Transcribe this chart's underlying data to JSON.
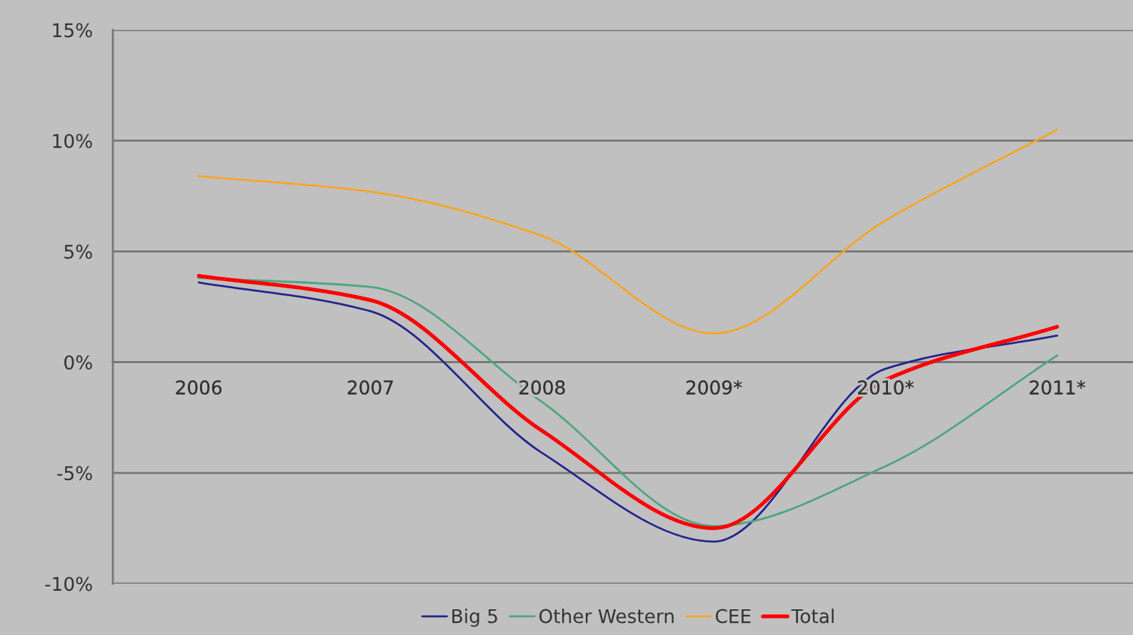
{
  "chart_data": {
    "type": "line",
    "categories": [
      "2006",
      "2007",
      "2008",
      "2009*",
      "2010*",
      "2011*"
    ],
    "series": [
      {
        "name": "Big 5",
        "color": "#24248c",
        "values": [
          3.6,
          2.3,
          -4.1,
          -8.1,
          -0.3,
          1.2
        ]
      },
      {
        "name": "Other Western",
        "color": "#4ea67e",
        "values": [
          3.8,
          3.4,
          -1.8,
          -7.4,
          -4.7,
          0.3
        ]
      },
      {
        "name": "CEE",
        "color": "#f7a626",
        "values": [
          8.4,
          7.7,
          5.7,
          1.3,
          6.4,
          10.5
        ]
      },
      {
        "name": "Total",
        "color": "#ff0000",
        "values": [
          3.9,
          2.8,
          -3.1,
          -7.5,
          -0.8,
          1.6
        ]
      }
    ],
    "ylim": [
      -10,
      15
    ],
    "yticks": [
      {
        "value": -10,
        "label": "-10%"
      },
      {
        "value": -5,
        "label": "-5%"
      },
      {
        "value": 0,
        "label": "0%"
      },
      {
        "value": 5,
        "label": "5%"
      },
      {
        "value": 10,
        "label": "10%"
      },
      {
        "value": 15,
        "label": "15%"
      }
    ],
    "grid": "y",
    "legend": "bottom",
    "marker": "none",
    "line_style": "solid"
  }
}
